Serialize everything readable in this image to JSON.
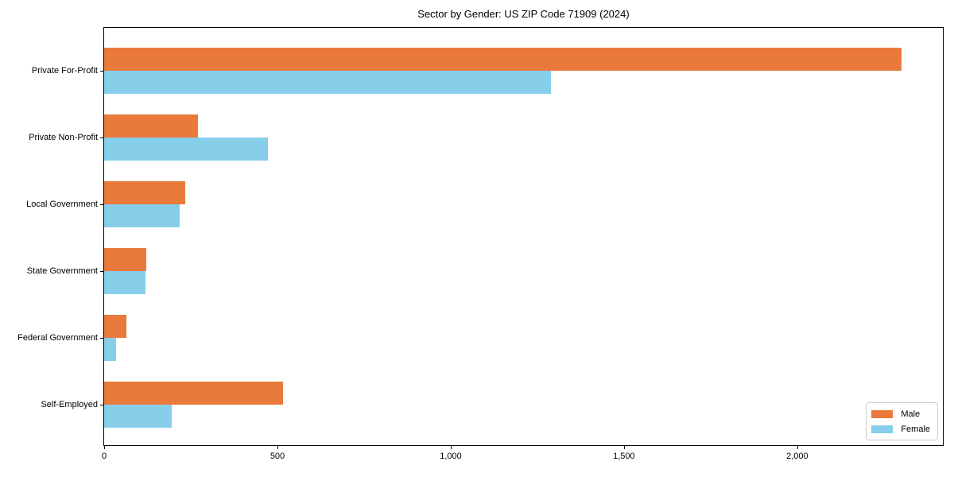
{
  "chart_data": {
    "type": "bar",
    "orientation": "horizontal",
    "title": "Sector by Gender: US ZIP Code 71909 (2024)",
    "categories": [
      "Private For-Profit",
      "Private Non-Profit",
      "Local Government",
      "State Government",
      "Federal Government",
      "Self-Employed"
    ],
    "series": [
      {
        "name": "Male",
        "color": "#e97a3c",
        "values": [
          2300,
          270,
          235,
          122,
          63,
          517
        ]
      },
      {
        "name": "Female",
        "color": "#87ceeb",
        "values": [
          1290,
          472,
          217,
          120,
          34,
          195
        ]
      }
    ],
    "xlabel": "",
    "ylabel": "",
    "xlim": [
      0,
      2420
    ],
    "x_ticks": [
      0,
      500,
      1000,
      1500,
      2000
    ],
    "x_tick_labels": [
      "0",
      "500",
      "1,000",
      "1,500",
      "2,000"
    ],
    "grid": false,
    "legend_position": "lower right"
  },
  "colors": {
    "male": "#e97a3c",
    "female": "#87ceeb",
    "spine": "#000000",
    "text": "#000000",
    "legend_border": "#cccccc",
    "background": "#ffffff"
  }
}
